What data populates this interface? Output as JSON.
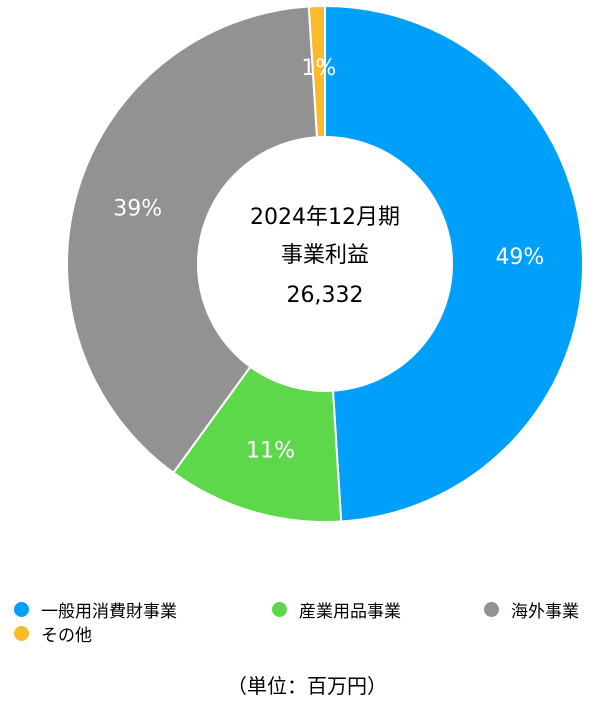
{
  "chart_data": {
    "type": "pie",
    "donut": true,
    "center_text": [
      "2024年12月期",
      "事業利益",
      "26,332"
    ],
    "categories": [
      "一般用消費財事業",
      "産業用品事業",
      "海外事業",
      "その他"
    ],
    "values": [
      49,
      11,
      39,
      1
    ],
    "value_labels": [
      "49%",
      "11%",
      "39%",
      "1%"
    ],
    "colors": [
      "#00A0FA",
      "#5DD84A",
      "#929292",
      "#FBBA2C"
    ],
    "legend_placement": "bottom",
    "unit": "（単位：百万円）"
  }
}
